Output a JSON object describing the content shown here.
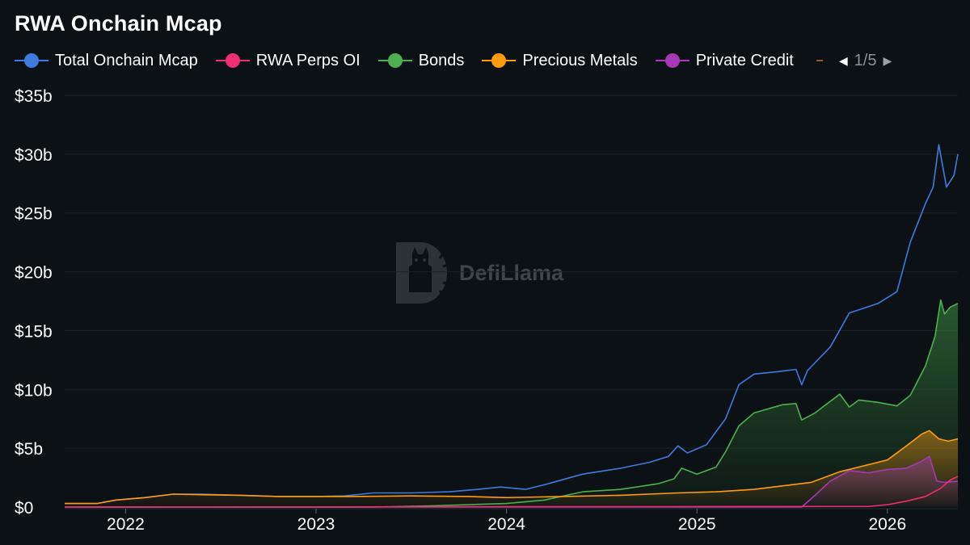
{
  "title": "RWA Onchain Mcap",
  "legend": {
    "items": [
      {
        "label": "Total Onchain Mcap",
        "color": "#3e7be0"
      },
      {
        "label": "RWA Perps OI",
        "color": "#ec2f72"
      },
      {
        "label": "Bonds",
        "color": "#4caf50"
      },
      {
        "label": "Precious Metals",
        "color": "#ff9b0f"
      },
      {
        "label": "Private Credit",
        "color": "#a53ab4"
      }
    ],
    "partial_color": "#a0522d",
    "page_indicator": "1/5",
    "prev_icon": "◀",
    "next_icon": "▶"
  },
  "watermark": "DefiLlama",
  "chart_data": {
    "type": "area",
    "title": "RWA Onchain Mcap",
    "xlabel": "",
    "ylabel": "",
    "x_ticks": [
      "2022",
      "2023",
      "2024",
      "2025",
      "2026"
    ],
    "y_ticks": [
      "$0",
      "$5b",
      "$10b",
      "$15b",
      "$20b",
      "$25b",
      "$30b",
      "$35b"
    ],
    "x_range": [
      2021.68,
      2026.37
    ],
    "ylim": [
      0,
      35
    ],
    "unit": "billions USD",
    "grid": true,
    "legend_position": "top",
    "series": [
      {
        "name": "Total Onchain Mcap",
        "color": "#3e7be0",
        "fill": false,
        "x": [
          2021.68,
          2021.85,
          2021.95,
          2022.1,
          2022.25,
          2022.4,
          2022.6,
          2022.8,
          2023.0,
          2023.15,
          2023.3,
          2023.5,
          2023.7,
          2023.85,
          2023.97,
          2024.1,
          2024.2,
          2024.4,
          2024.6,
          2024.75,
          2024.85,
          2024.9,
          2024.95,
          2025.05,
          2025.15,
          2025.22,
          2025.3,
          2025.42,
          2025.52,
          2025.55,
          2025.58,
          2025.7,
          2025.8,
          2025.95,
          2026.05,
          2026.12,
          2026.2,
          2026.24,
          2026.27,
          2026.31,
          2026.35,
          2026.37
        ],
        "y": [
          0.3,
          0.3,
          0.6,
          0.8,
          1.1,
          1.1,
          1.0,
          0.9,
          0.9,
          0.95,
          1.2,
          1.2,
          1.3,
          1.5,
          1.7,
          1.5,
          1.9,
          2.8,
          3.3,
          3.8,
          4.3,
          5.2,
          4.6,
          5.3,
          7.5,
          10.4,
          11.3,
          11.5,
          11.7,
          10.4,
          11.6,
          13.6,
          16.5,
          17.3,
          18.3,
          22.5,
          25.8,
          27.2,
          30.8,
          27.2,
          28.2,
          30.0
        ]
      },
      {
        "name": "Bonds",
        "color": "#4caf50",
        "fill": true,
        "x": [
          2021.68,
          2022.0,
          2022.5,
          2023.0,
          2023.3,
          2023.6,
          2024.0,
          2024.2,
          2024.4,
          2024.6,
          2024.8,
          2024.88,
          2024.92,
          2025.0,
          2025.1,
          2025.15,
          2025.22,
          2025.3,
          2025.45,
          2025.52,
          2025.55,
          2025.62,
          2025.75,
          2025.8,
          2025.85,
          2025.95,
          2026.05,
          2026.12,
          2026.2,
          2026.25,
          2026.28,
          2026.3,
          2026.33,
          2026.37
        ],
        "y": [
          0.0,
          0.0,
          0.0,
          0.0,
          0.0,
          0.1,
          0.3,
          0.6,
          1.3,
          1.5,
          2.0,
          2.4,
          3.3,
          2.8,
          3.4,
          4.7,
          6.9,
          8.0,
          8.7,
          8.8,
          7.4,
          8.0,
          9.6,
          8.5,
          9.1,
          8.9,
          8.6,
          9.5,
          12.0,
          14.5,
          17.6,
          16.4,
          17.0,
          17.3
        ]
      },
      {
        "name": "Precious Metals",
        "color": "#ff9b0f",
        "fill": true,
        "x": [
          2021.68,
          2021.85,
          2021.95,
          2022.1,
          2022.25,
          2022.4,
          2022.6,
          2022.8,
          2023.0,
          2023.2,
          2023.5,
          2023.8,
          2024.0,
          2024.3,
          2024.6,
          2024.9,
          2025.1,
          2025.3,
          2025.5,
          2025.6,
          2025.75,
          2025.9,
          2026.0,
          2026.1,
          2026.18,
          2026.22,
          2026.27,
          2026.32,
          2026.37
        ],
        "y": [
          0.3,
          0.3,
          0.6,
          0.8,
          1.1,
          1.05,
          1.0,
          0.9,
          0.9,
          0.9,
          0.95,
          0.9,
          0.8,
          0.9,
          1.0,
          1.2,
          1.3,
          1.5,
          1.9,
          2.1,
          3.0,
          3.6,
          4.0,
          5.2,
          6.2,
          6.5,
          5.8,
          5.6,
          5.8
        ]
      },
      {
        "name": "Private Credit",
        "color": "#a53ab4",
        "fill": true,
        "x": [
          2021.68,
          2025.0,
          2025.55,
          2025.62,
          2025.7,
          2025.8,
          2025.9,
          2026.0,
          2026.1,
          2026.18,
          2026.22,
          2026.26,
          2026.3,
          2026.37
        ],
        "y": [
          0.0,
          0.0,
          0.0,
          1.0,
          2.2,
          3.1,
          2.9,
          3.2,
          3.3,
          3.9,
          4.3,
          2.2,
          2.1,
          2.2
        ]
      },
      {
        "name": "RWA Perps OI",
        "color": "#ec2f72",
        "fill": false,
        "x": [
          2021.68,
          2025.9,
          2026.0,
          2026.1,
          2026.2,
          2026.28,
          2026.33,
          2026.37
        ],
        "y": [
          0.0,
          0.05,
          0.2,
          0.5,
          0.9,
          1.6,
          2.3,
          2.6
        ]
      }
    ]
  }
}
